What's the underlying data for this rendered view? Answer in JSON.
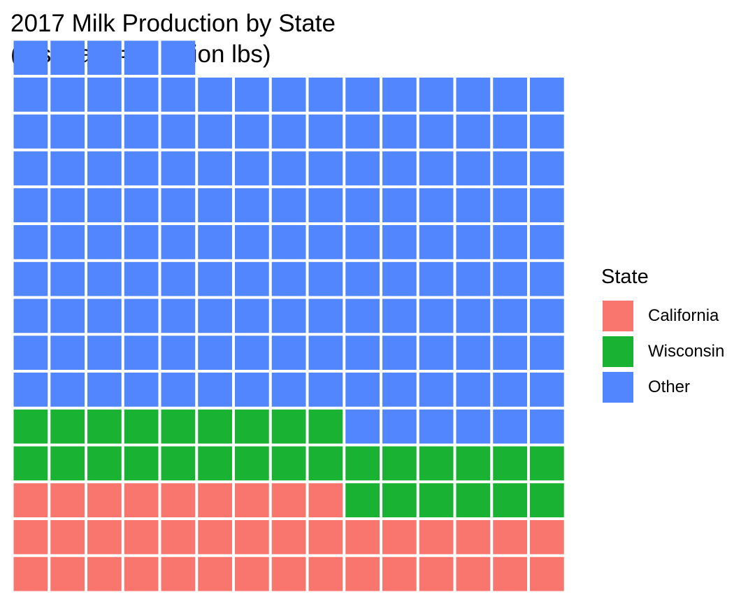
{
  "chart_data": {
    "type": "waffle",
    "title_lines": [
      "2017 Milk Production by State",
      "(1 square = 1 billion lbs)"
    ],
    "columns": 15,
    "fill_order": "bottom-to-top, left-to-right within each row",
    "categories": [
      "California",
      "Wisconsin",
      "Other"
    ],
    "values": [
      39,
      30,
      146
    ],
    "colors": [
      "#F8766D",
      "#19B232",
      "#5286FF"
    ],
    "legend": {
      "title": "State",
      "position": "right"
    }
  }
}
